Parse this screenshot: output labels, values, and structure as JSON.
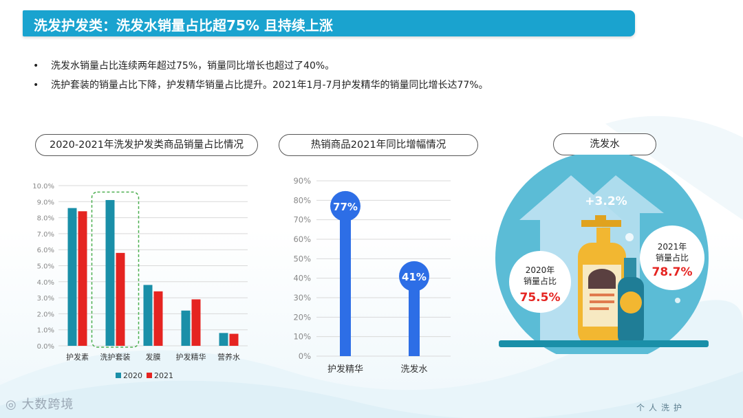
{
  "title": "洗发护发类：洗发水销量占比超75% 且持续上涨",
  "bullets": [
    "洗发水销量占比连续两年超过75%，销量同比增长也超过了40%。",
    "洗护套装的销量占比下降，护发精华销量占比提升。2021年1月-7月护发精华的销量同比增长达77%。"
  ],
  "panel_titles": {
    "left": "2020-2021年洗发护发类商品销量占比情况",
    "middle": "热销商品2021年同比增幅情况",
    "right": "洗发水"
  },
  "chart_data": [
    {
      "type": "bar",
      "categories": [
        "护发素",
        "洗护套装",
        "发膜",
        "护发精华",
        "营养水"
      ],
      "series": [
        {
          "name": "2020",
          "values": [
            8.6,
            9.1,
            3.8,
            2.2,
            0.8
          ],
          "color": "#1a8fa8"
        },
        {
          "name": "2021",
          "values": [
            8.4,
            5.8,
            3.4,
            2.9,
            0.75
          ],
          "color": "#e52421"
        }
      ],
      "ylim": [
        0,
        10
      ],
      "yticks": [
        "0.0%",
        "1.0%",
        "2.0%",
        "3.0%",
        "4.0%",
        "5.0%",
        "6.0%",
        "7.0%",
        "8.0%",
        "9.0%",
        "10.0%"
      ],
      "highlight_category": "洗护套装",
      "legend": "bottom",
      "grid": true
    },
    {
      "type": "bar",
      "categories": [
        "护发精华",
        "洗发水"
      ],
      "values": [
        77,
        41
      ],
      "labels": [
        "77%",
        "41%"
      ],
      "ylim": [
        0,
        90
      ],
      "yticks": [
        "0%",
        "10%",
        "20%",
        "30%",
        "40%",
        "50%",
        "60%",
        "70%",
        "80%",
        "90%"
      ],
      "color": "#2d6ee6",
      "grid": true
    }
  ],
  "infographic": {
    "growth": "+3.2%",
    "left_bubble": {
      "year": "2020年",
      "label": "销量占比",
      "value": "75.5%"
    },
    "right_bubble": {
      "year": "2021年",
      "label": "销量占比",
      "value": "78.7%"
    },
    "colors": {
      "circle": "#5bbcd6",
      "arrow": "#b6dff0",
      "bottle": "#f2b731",
      "bottle2": "#2f8ea6",
      "value": "#e52421"
    }
  },
  "footer": {
    "brand": "大数跨境",
    "section": "个人洗护"
  }
}
